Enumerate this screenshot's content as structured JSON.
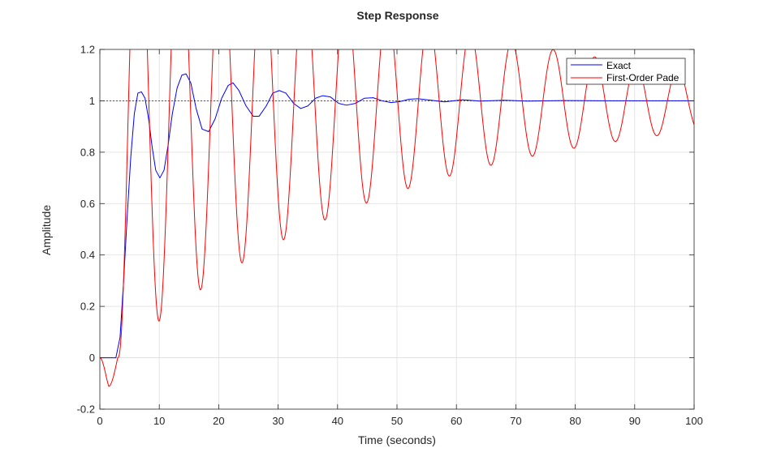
{
  "chart_data": {
    "type": "line",
    "title": "Step Response",
    "xlabel": "Time (seconds)",
    "ylabel": "Amplitude",
    "xlim": [
      0,
      100
    ],
    "ylim": [
      -0.2,
      1.2
    ],
    "xticks": [
      0,
      10,
      20,
      30,
      40,
      50,
      60,
      70,
      80,
      90,
      100
    ],
    "yticks": [
      -0.2,
      0,
      0.2,
      0.4,
      0.6,
      0.8,
      1,
      1.2
    ],
    "xtick_labels": [
      "0",
      "10",
      "20",
      "30",
      "40",
      "50",
      "60",
      "70",
      "80",
      "90",
      "100"
    ],
    "ytick_labels": [
      "-0.2",
      "0",
      "0.2",
      "0.4",
      "0.6",
      "0.8",
      "1",
      "1.2"
    ],
    "grid": true,
    "legend_position": "top-right",
    "reference_line": {
      "y": 1,
      "style": "dotted",
      "color": "#000000"
    },
    "series": [
      {
        "name": "Exact",
        "color": "#0000ff",
        "points": [
          [
            0,
            0
          ],
          [
            2.7,
            0
          ],
          [
            3.4,
            0.08
          ],
          [
            4.0,
            0.3
          ],
          [
            4.6,
            0.55
          ],
          [
            5.2,
            0.78
          ],
          [
            5.8,
            0.95
          ],
          [
            6.4,
            1.03
          ],
          [
            7.0,
            1.035
          ],
          [
            7.6,
            1.01
          ],
          [
            8.2,
            0.93
          ],
          [
            8.8,
            0.82
          ],
          [
            9.4,
            0.73
          ],
          [
            10.1,
            0.7
          ],
          [
            10.8,
            0.73
          ],
          [
            11.5,
            0.83
          ],
          [
            12.2,
            0.95
          ],
          [
            13.0,
            1.05
          ],
          [
            13.8,
            1.1
          ],
          [
            14.5,
            1.105
          ],
          [
            15.3,
            1.07
          ],
          [
            16.2,
            0.97
          ],
          [
            17.2,
            0.89
          ],
          [
            18.3,
            0.88
          ],
          [
            19.4,
            0.93
          ],
          [
            20.5,
            1.01
          ],
          [
            21.6,
            1.06
          ],
          [
            22.4,
            1.07
          ],
          [
            23.4,
            1.04
          ],
          [
            24.6,
            0.98
          ],
          [
            25.8,
            0.94
          ],
          [
            26.8,
            0.94
          ],
          [
            28.0,
            0.98
          ],
          [
            29.1,
            1.03
          ],
          [
            30.2,
            1.04
          ],
          [
            31.3,
            1.03
          ],
          [
            32.6,
            0.99
          ],
          [
            33.8,
            0.97
          ],
          [
            35.0,
            0.98
          ],
          [
            36.3,
            1.01
          ],
          [
            37.5,
            1.02
          ],
          [
            38.8,
            1.015
          ],
          [
            40.2,
            0.99
          ],
          [
            41.5,
            0.983
          ],
          [
            43.0,
            0.99
          ],
          [
            44.5,
            1.01
          ],
          [
            46.0,
            1.012
          ],
          [
            47.5,
            1.0
          ],
          [
            49.0,
            0.993
          ],
          [
            50.5,
            0.997
          ],
          [
            52.0,
            1.006
          ],
          [
            53.5,
            1.008
          ],
          [
            55.5,
            1.003
          ],
          [
            58,
            0.996
          ],
          [
            61,
            1.004
          ],
          [
            64,
            0.999
          ],
          [
            68,
            1.002
          ],
          [
            72,
            0.999
          ],
          [
            78,
            1.001
          ],
          [
            85,
            1.0
          ],
          [
            92,
            1.0
          ],
          [
            100,
            1.0
          ]
        ]
      },
      {
        "name": "First-Order Pade",
        "model": {
          "delay_jump": 0.95,
          "overshoot": 0.98,
          "dip_time": 1.5,
          "dip_value": -0.12,
          "freq": 0.9,
          "damping": 0.022
        },
        "color": "#ff0000"
      }
    ]
  }
}
